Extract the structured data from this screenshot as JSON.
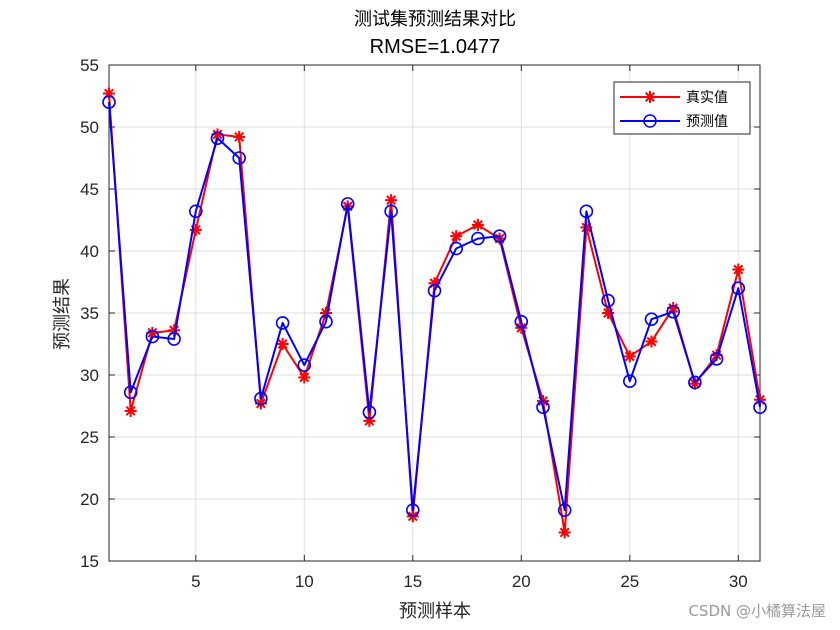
{
  "chart_data": {
    "type": "line",
    "title": "测试集预测结果对比",
    "subtitle": "RMSE=1.0477",
    "xlabel": "预测样本",
    "ylabel": "预测结果",
    "xlim": [
      1,
      31
    ],
    "ylim": [
      15,
      55
    ],
    "xticks": [
      5,
      10,
      15,
      20,
      25,
      30
    ],
    "yticks": [
      15,
      20,
      25,
      30,
      35,
      40,
      45,
      50,
      55
    ],
    "grid": true,
    "legend_position": "top-right",
    "x": [
      1,
      2,
      3,
      4,
      5,
      6,
      7,
      8,
      9,
      10,
      11,
      12,
      13,
      14,
      15,
      16,
      17,
      18,
      19,
      20,
      21,
      22,
      23,
      24,
      25,
      26,
      27,
      28,
      29,
      30,
      31
    ],
    "series": [
      {
        "name": "真实值",
        "color": "#ff0000",
        "marker": "asterisk",
        "values": [
          52.7,
          27.1,
          33.4,
          33.6,
          41.7,
          49.4,
          49.2,
          27.7,
          32.5,
          29.8,
          35.0,
          43.6,
          26.3,
          44.1,
          18.6,
          37.4,
          41.2,
          42.1,
          41.0,
          33.8,
          27.9,
          17.3,
          41.9,
          35.0,
          31.5,
          32.7,
          35.4,
          29.3,
          31.6,
          38.5,
          28.0
        ]
      },
      {
        "name": "预测值",
        "color": "#0000ff",
        "marker": "circle",
        "values": [
          52.0,
          28.6,
          33.1,
          32.9,
          43.2,
          49.1,
          47.5,
          28.1,
          34.2,
          30.8,
          34.3,
          43.8,
          27.0,
          43.2,
          19.1,
          36.8,
          40.2,
          41.0,
          41.2,
          34.3,
          27.4,
          19.1,
          43.2,
          36.0,
          29.5,
          34.5,
          35.1,
          29.4,
          31.3,
          37.0,
          27.4
        ]
      }
    ]
  },
  "watermark": "CSDN @小橘算法屋"
}
